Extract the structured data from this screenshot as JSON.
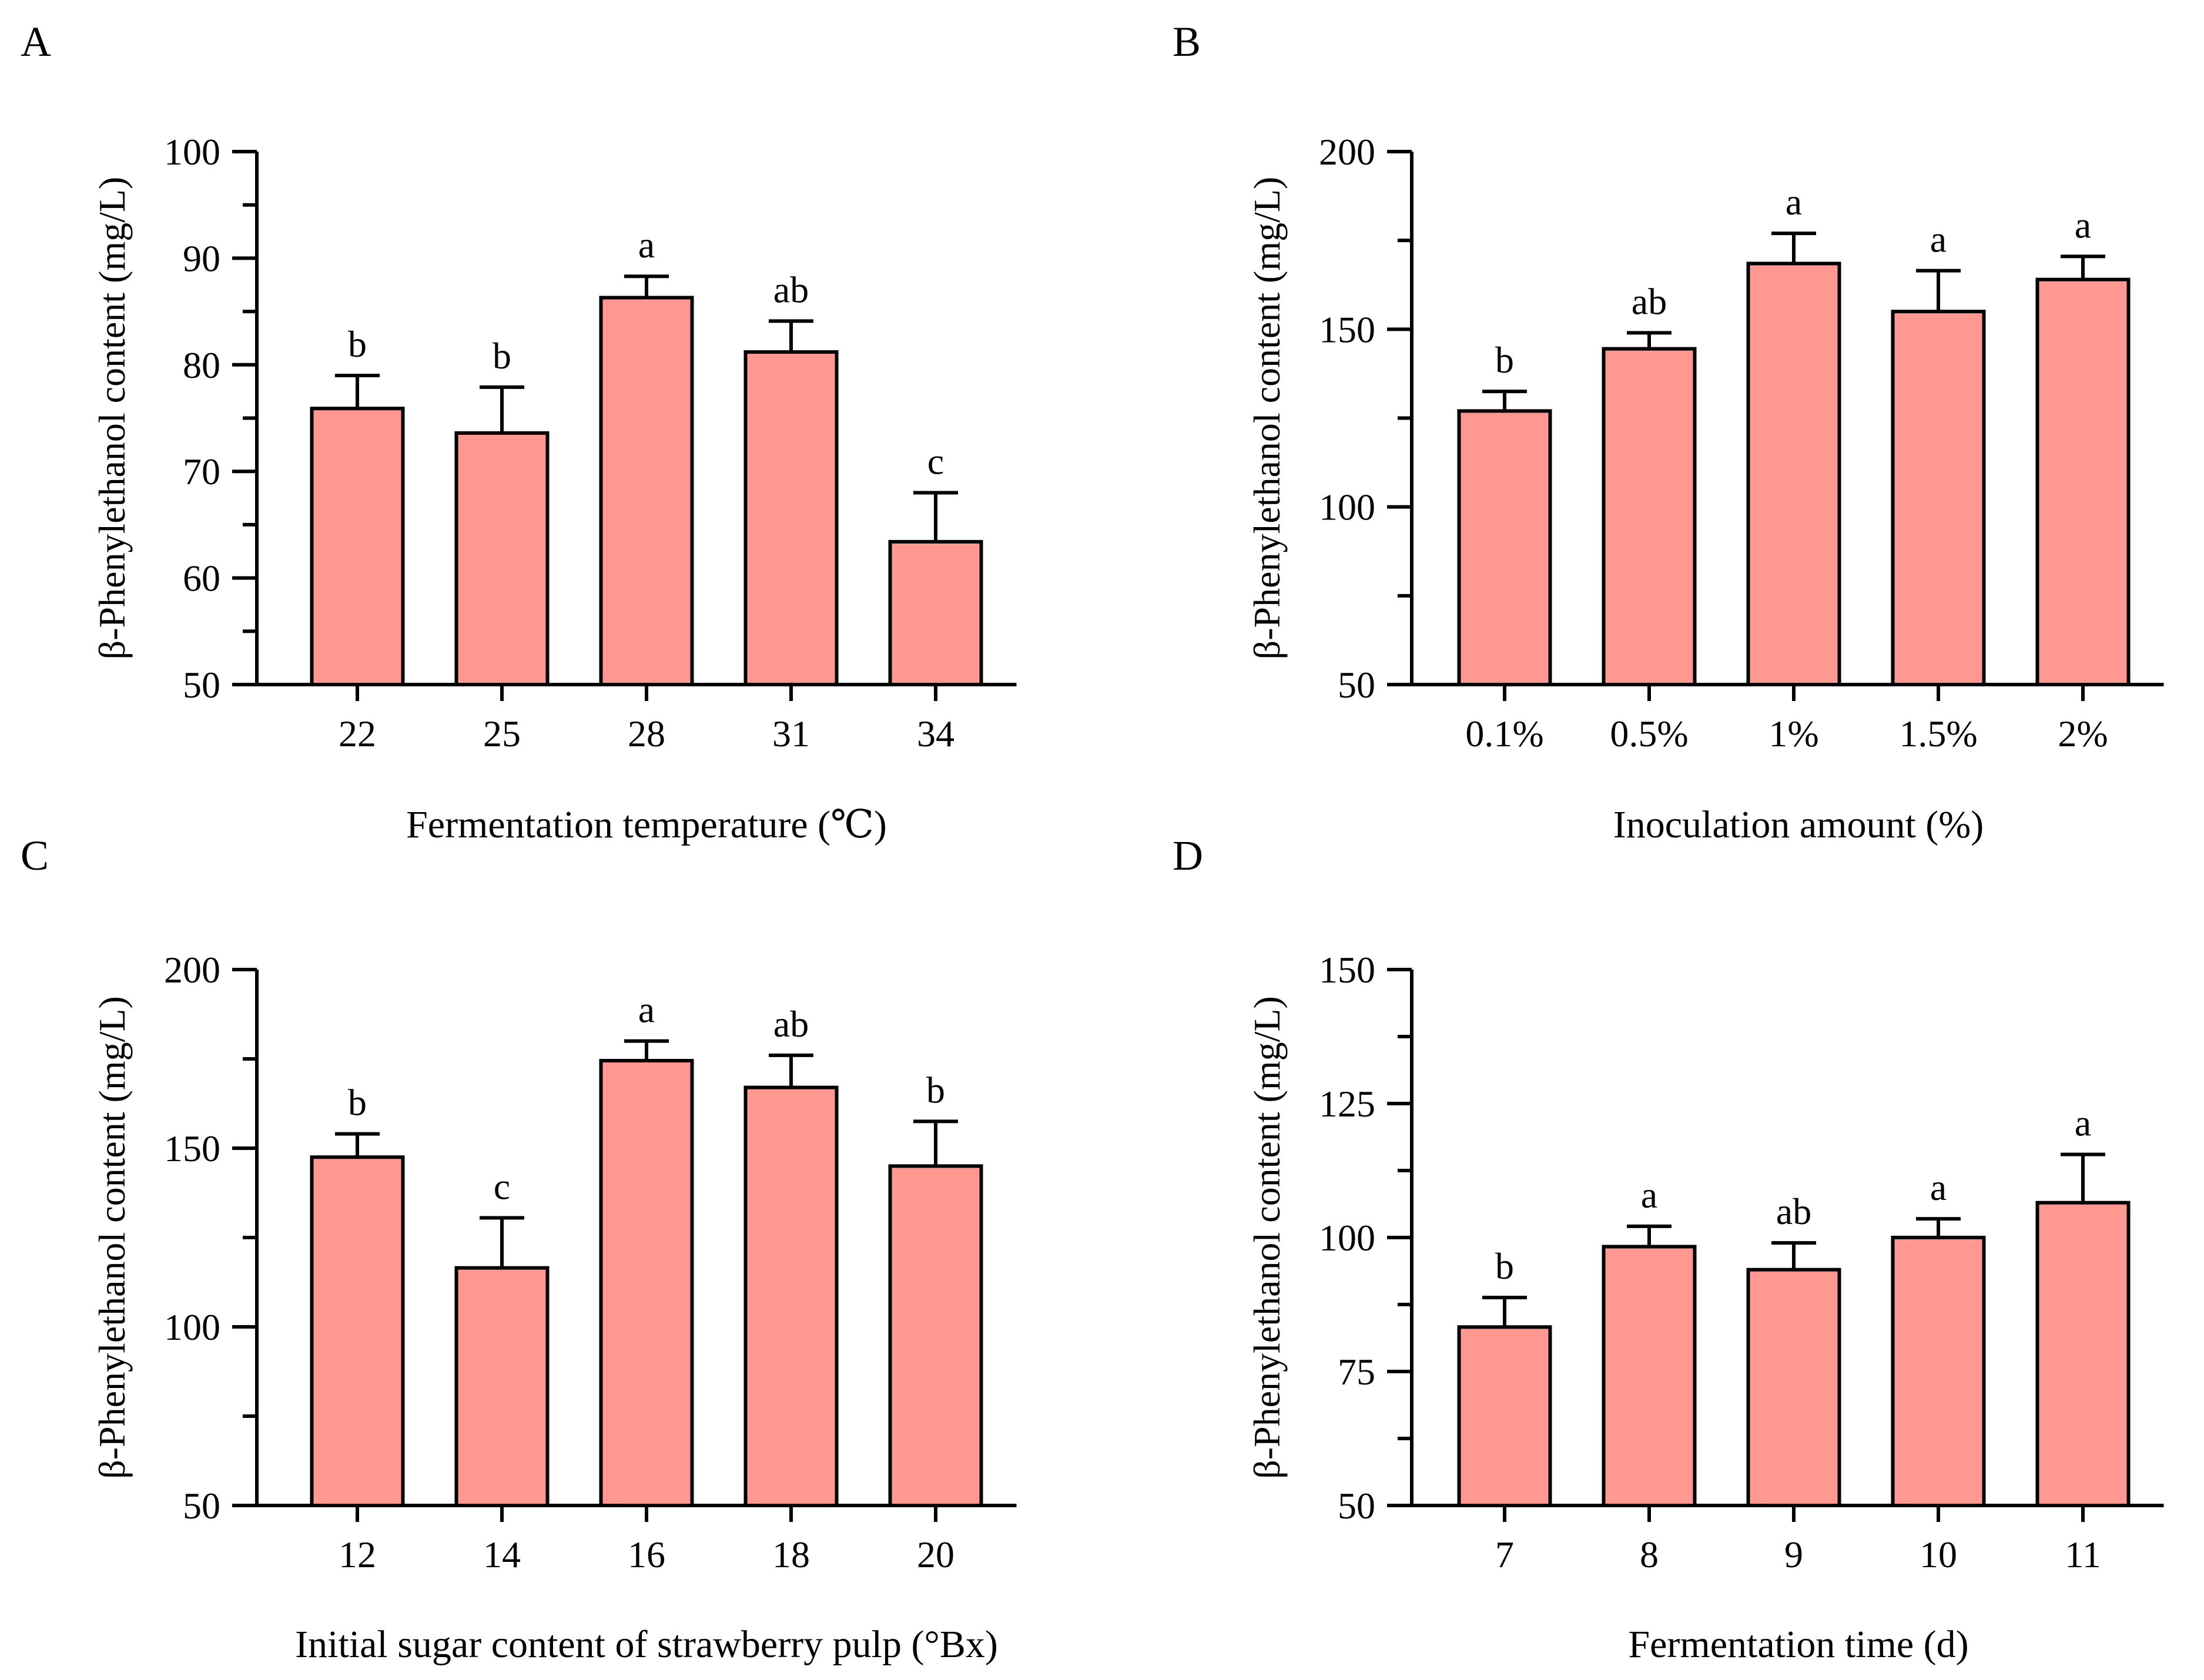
{
  "figure": {
    "bar_color": "#FF9891",
    "stroke_color": "#000000"
  },
  "chart_data": [
    {
      "panel_label": "A",
      "type": "bar",
      "categories": [
        "22",
        "25",
        "28",
        "31",
        "34"
      ],
      "values": [
        75.9,
        73.6,
        86.3,
        81.2,
        63.4
      ],
      "errors": [
        3.1,
        4.3,
        2.0,
        2.9,
        4.6
      ],
      "significance": [
        "b",
        "b",
        "a",
        "ab",
        "c"
      ],
      "xlabel": "Fermentation temperature (℃)",
      "ylabel": "β-Phenylethanol content (mg/L)",
      "ylim": [
        50,
        100
      ],
      "yticks": [
        50,
        60,
        70,
        80,
        90,
        100
      ],
      "ytick_labels": [
        "50",
        "60",
        "70",
        "80",
        "90",
        "100"
      ]
    },
    {
      "panel_label": "B",
      "type": "bar",
      "categories": [
        "0.1%",
        "0.5%",
        "1%",
        "1.5%",
        "2%"
      ],
      "values": [
        127,
        144.5,
        168.5,
        155,
        164
      ],
      "errors": [
        5.5,
        4.5,
        8.5,
        11.5,
        6.5
      ],
      "significance": [
        "b",
        "ab",
        "a",
        "a",
        "a"
      ],
      "xlabel": "Inoculation amount (%)",
      "ylabel": "β-Phenylethanol content (mg/L)",
      "ylim": [
        50,
        200
      ],
      "yticks": [
        50,
        100,
        150,
        200
      ],
      "ytick_labels": [
        "50",
        "100",
        "150",
        "200"
      ]
    },
    {
      "panel_label": "C",
      "type": "bar",
      "categories": [
        "12",
        "14",
        "16",
        "18",
        "20"
      ],
      "values": [
        147.5,
        116.5,
        174.5,
        167,
        145
      ],
      "errors": [
        6.5,
        14,
        5.5,
        9,
        12.5
      ],
      "significance": [
        "b",
        "c",
        "a",
        "ab",
        "b"
      ],
      "xlabel": "Initial sugar content of strawberry pulp (°Bx)",
      "ylabel": "β-Phenylethanol content (mg/L)",
      "ylim": [
        50,
        200
      ],
      "yticks": [
        50,
        100,
        150,
        200
      ],
      "ytick_labels": [
        "50",
        "100",
        "150",
        "200"
      ]
    },
    {
      "panel_label": "D",
      "type": "bar",
      "categories": [
        "7",
        "8",
        "9",
        "10",
        "11"
      ],
      "values": [
        83.3,
        98.3,
        94,
        100,
        106.5
      ],
      "errors": [
        5.5,
        3.8,
        5,
        3.5,
        9
      ],
      "significance": [
        "b",
        "a",
        "ab",
        "a",
        "a"
      ],
      "xlabel": "Fermentation time (d)",
      "ylabel": "β-Phenylethanol content (mg/L)",
      "ylim": [
        50,
        150
      ],
      "yticks": [
        50,
        75,
        100,
        125,
        150
      ],
      "ytick_labels": [
        "50",
        "75",
        "100",
        "125",
        "150"
      ]
    }
  ]
}
